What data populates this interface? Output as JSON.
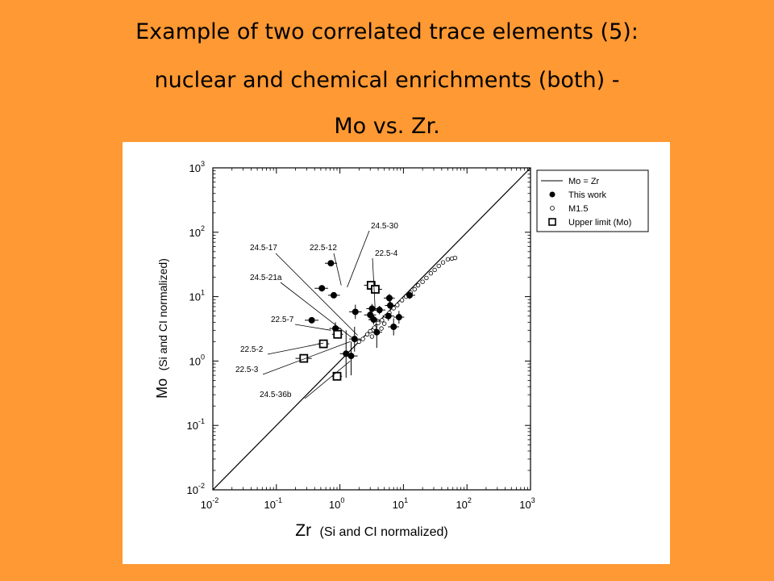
{
  "slide": {
    "title_line1": "Example of two correlated trace elements (5):",
    "title_line2": "nuclear and chemical enrichments (both) -",
    "title_line3": "Mo vs. Zr.",
    "background_color": "#FF9933"
  },
  "chart_data": {
    "type": "scatter",
    "x_scale": "log",
    "y_scale": "log",
    "xlim": [
      0.01,
      1000
    ],
    "ylim": [
      0.01,
      1000
    ],
    "x_ticks": [
      {
        "base": "10",
        "exp": "-2"
      },
      {
        "base": "10",
        "exp": "-1"
      },
      {
        "base": "10",
        "exp": "0"
      },
      {
        "base": "10",
        "exp": "1"
      },
      {
        "base": "10",
        "exp": "2"
      },
      {
        "base": "10",
        "exp": "3"
      }
    ],
    "y_ticks": [
      {
        "base": "10",
        "exp": "-2"
      },
      {
        "base": "10",
        "exp": "-1"
      },
      {
        "base": "10",
        "exp": "0"
      },
      {
        "base": "10",
        "exp": "1"
      },
      {
        "base": "10",
        "exp": "2"
      },
      {
        "base": "10",
        "exp": "3"
      }
    ],
    "xlabel_main": "Zr",
    "xlabel_sub": "(Si and CI normalized)",
    "ylabel_main": "Mo",
    "ylabel_sub": "(Si and CI normalized)",
    "legend_position": "top-right",
    "legend": [
      {
        "label": "Mo = Zr",
        "marker": "line"
      },
      {
        "label": "This work",
        "marker": "filled-circle"
      },
      {
        "label": "M1.5",
        "marker": "open-circle"
      },
      {
        "label": "Upper limit (Mo)",
        "marker": "open-square"
      }
    ],
    "line": {
      "name": "Mo = Zr",
      "x": [
        0.01,
        1000
      ],
      "y": [
        0.01,
        1000
      ]
    },
    "series": [
      {
        "name": "This work",
        "marker": "filled-circle",
        "points": [
          {
            "x": 0.72,
            "y": 33,
            "xerr": [
              0.58,
              0.9
            ],
            "yerr": [
              30,
              36
            ]
          },
          {
            "x": 0.52,
            "y": 13.5,
            "xerr": [
              0.4,
              0.65
            ],
            "yerr": [
              12,
              15
            ]
          },
          {
            "x": 0.8,
            "y": 10.5,
            "xerr": [
              0.65,
              1.0
            ],
            "yerr": [
              9.5,
              11.5
            ]
          },
          {
            "x": 0.36,
            "y": 4.3,
            "xerr": [
              0.28,
              0.46
            ],
            "yerr": [
              3.9,
              4.7
            ]
          },
          {
            "x": 0.85,
            "y": 3.2,
            "xerr": [
              0.68,
              1.05
            ],
            "yerr": [
              2.5,
              4.0
            ]
          },
          {
            "x": 1.75,
            "y": 5.8,
            "xerr": [
              1.4,
              2.2
            ],
            "yerr": [
              4.5,
              7.5
            ]
          },
          {
            "x": 1.7,
            "y": 2.2,
            "xerr": [
              1.4,
              2.1
            ],
            "yerr": [
              1.4,
              3.4
            ]
          },
          {
            "x": 1.25,
            "y": 1.3,
            "xerr": [
              1.0,
              1.55
            ],
            "yerr": [
              0.55,
              3.0
            ]
          },
          {
            "x": 1.5,
            "y": 1.2,
            "xerr": [
              1.2,
              1.9
            ],
            "yerr": [
              0.6,
              2.0
            ]
          },
          {
            "x": 3.2,
            "y": 6.5,
            "xerr": [
              2.6,
              4.0
            ],
            "yerr": [
              5.5,
              7.7
            ]
          },
          {
            "x": 3.0,
            "y": 5.2,
            "xerr": [
              2.4,
              3.7
            ],
            "yerr": [
              4.3,
              6.3
            ]
          },
          {
            "x": 3.4,
            "y": 4.4,
            "xerr": [
              2.8,
              4.2
            ],
            "yerr": [
              3.7,
              5.2
            ]
          },
          {
            "x": 4.2,
            "y": 6.2,
            "xerr": [
              3.4,
              5.2
            ],
            "yerr": [
              5.3,
              7.2
            ]
          },
          {
            "x": 6.0,
            "y": 9.5,
            "xerr": [
              4.9,
              7.3
            ],
            "yerr": [
              8.2,
              11
            ]
          },
          {
            "x": 6.2,
            "y": 7.3,
            "xerr": [
              5.1,
              7.5
            ],
            "yerr": [
              6.3,
              8.5
            ]
          },
          {
            "x": 5.8,
            "y": 5.0,
            "xerr": [
              4.7,
              7.1
            ],
            "yerr": [
              4.2,
              6.0
            ]
          },
          {
            "x": 8.5,
            "y": 4.8,
            "xerr": [
              7.0,
              10.3
            ],
            "yerr": [
              3.8,
              6.0
            ]
          },
          {
            "x": 7.0,
            "y": 3.4,
            "xerr": [
              5.7,
              8.5
            ],
            "yerr": [
              2.5,
              4.6
            ]
          },
          {
            "x": 3.8,
            "y": 2.8,
            "xerr": [
              3.1,
              4.6
            ],
            "yerr": [
              1.6,
              4.6
            ]
          },
          {
            "x": 12.5,
            "y": 10.5,
            "xerr": [
              10.2,
              15.3
            ],
            "yerr": [
              9.2,
              12
            ]
          }
        ]
      },
      {
        "name": "M1.5",
        "marker": "open-circle",
        "points": [
          {
            "x": 2.0,
            "y": 2.0
          },
          {
            "x": 2.3,
            "y": 2.2
          },
          {
            "x": 2.7,
            "y": 2.6
          },
          {
            "x": 3.0,
            "y": 2.9
          },
          {
            "x": 3.5,
            "y": 3.3
          },
          {
            "x": 4.0,
            "y": 3.9
          },
          {
            "x": 4.6,
            "y": 4.3
          },
          {
            "x": 5.3,
            "y": 5.0
          },
          {
            "x": 6.0,
            "y": 5.6
          },
          {
            "x": 7.0,
            "y": 6.6
          },
          {
            "x": 8.0,
            "y": 7.4
          },
          {
            "x": 9.5,
            "y": 8.8
          },
          {
            "x": 11,
            "y": 10
          },
          {
            "x": 13,
            "y": 11.5
          },
          {
            "x": 15,
            "y": 13
          },
          {
            "x": 17,
            "y": 15
          },
          {
            "x": 20,
            "y": 17
          },
          {
            "x": 23,
            "y": 19.5
          },
          {
            "x": 27,
            "y": 23
          },
          {
            "x": 31,
            "y": 26
          },
          {
            "x": 36,
            "y": 30
          },
          {
            "x": 42,
            "y": 34
          },
          {
            "x": 50,
            "y": 38
          },
          {
            "x": 58,
            "y": 39
          },
          {
            "x": 65,
            "y": 40
          },
          {
            "x": 4.5,
            "y": 3.2
          },
          {
            "x": 5.0,
            "y": 3.8
          },
          {
            "x": 3.2,
            "y": 2.4
          }
        ]
      },
      {
        "name": "Upper limit (Mo)",
        "marker": "open-square",
        "points": [
          {
            "x": 3.1,
            "y": 15,
            "xerr": [
              2.4,
              4.0
            ],
            "yerr": [
              14,
              16
            ]
          },
          {
            "x": 3.6,
            "y": 13,
            "xerr": [
              2.8,
              4.6
            ],
            "yerr": [
              12,
              14
            ]
          },
          {
            "x": 0.55,
            "y": 1.85,
            "xerr": [
              0.45,
              0.68
            ],
            "yerr": [
              1.6,
              2.1
            ]
          },
          {
            "x": 0.27,
            "y": 1.1,
            "xerr": [
              0.2,
              0.36
            ],
            "yerr": [
              1.0,
              1.2
            ]
          },
          {
            "x": 0.92,
            "y": 2.6,
            "xerr": [
              0.75,
              1.12
            ],
            "yerr": [
              2.3,
              2.9
            ]
          },
          {
            "x": 0.9,
            "y": 0.58,
            "xerr": [
              0.75,
              1.08
            ],
            "yerr": [
              0.55,
              0.61
            ]
          }
        ]
      }
    ],
    "annotations": [
      {
        "label": "24.5-30",
        "x": 1.3,
        "y": 14
      },
      {
        "label": "22.5-12",
        "x": 1.05,
        "y": 15
      },
      {
        "label": "24.5-17",
        "x": 1.9,
        "y": 2.5
      },
      {
        "label": "22.5-4",
        "x": 3.6,
        "y": 6.0
      },
      {
        "label": "24.5-21a",
        "x": 1.55,
        "y": 2.3
      },
      {
        "label": "22.5-7",
        "x": 0.72,
        "y": 3.0
      },
      {
        "label": "22.5-2",
        "x": 0.55,
        "y": 1.9
      },
      {
        "label": "22.5-3",
        "x": 1.45,
        "y": 2.0
      },
      {
        "label": "24.5-36b",
        "x": 1.45,
        "y": 1.0
      }
    ]
  }
}
